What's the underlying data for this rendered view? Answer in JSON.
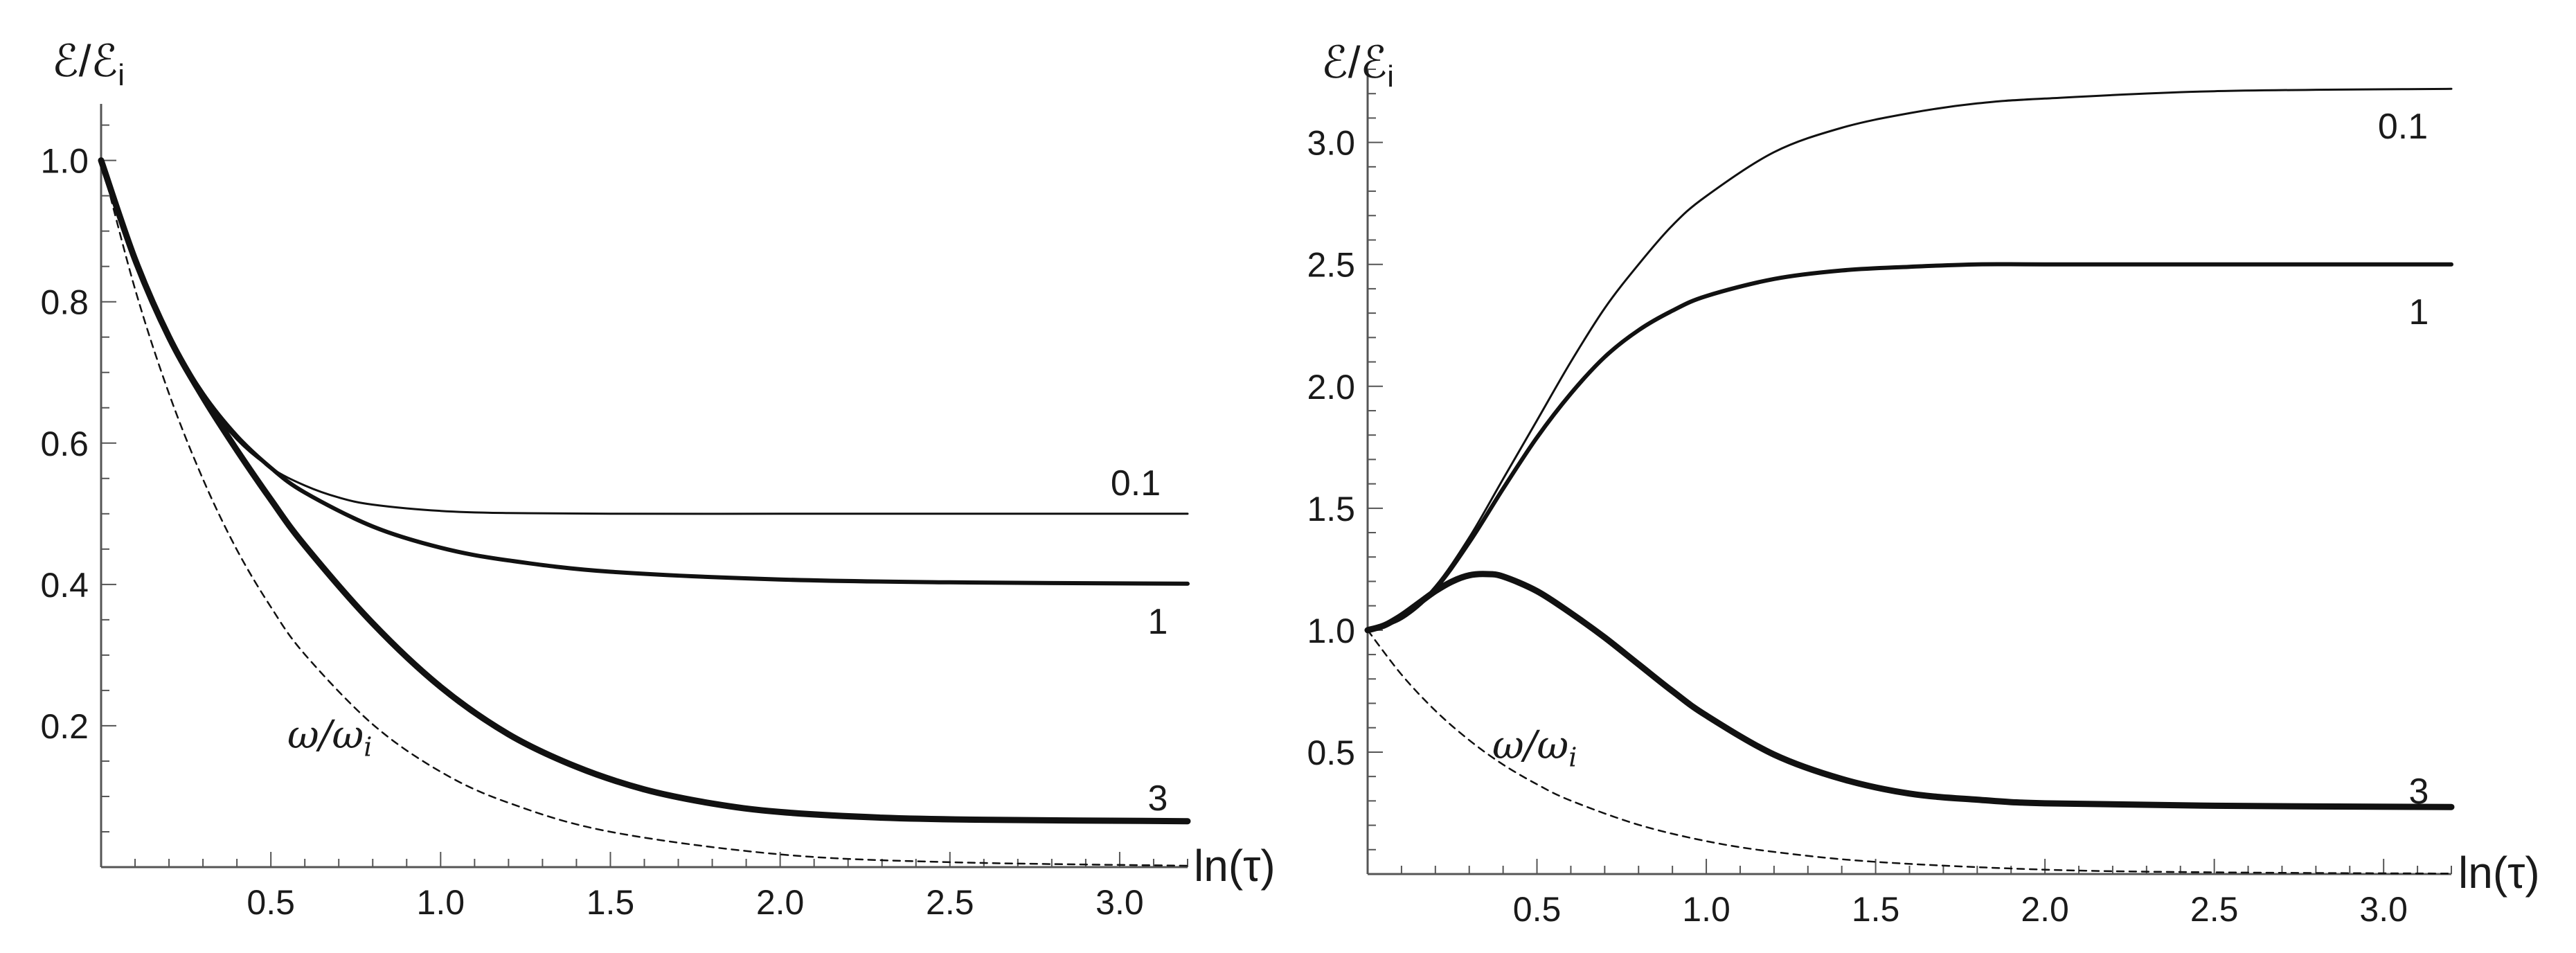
{
  "chart_data": [
    {
      "type": "line",
      "ylabel": "ℰ/ℰi",
      "ylabel_main": "ℰ/ℰ",
      "ylabel_sub": "i",
      "xlabel": "ln(τ)",
      "xlim": [
        0,
        3.2
      ],
      "ylim": [
        0,
        1.08
      ],
      "xticks": [
        "0.5",
        "1.0",
        "1.5",
        "2.0",
        "2.5",
        "3.0"
      ],
      "xtick_values": [
        0.5,
        1.0,
        1.5,
        2.0,
        2.5,
        3.0
      ],
      "yticks": [
        "0.2",
        "0.4",
        "0.6",
        "0.8",
        "1.0"
      ],
      "ytick_values": [
        0.2,
        0.4,
        0.6,
        0.8,
        1.0
      ],
      "series": [
        {
          "name": "0.1",
          "label": "0.1",
          "style": "thin",
          "x": [
            0,
            0.1,
            0.2,
            0.3,
            0.4,
            0.5,
            0.6,
            0.7,
            0.8,
            1.0,
            1.2,
            1.5,
            2.0,
            2.5,
            3.2
          ],
          "y": [
            1.0,
            0.86,
            0.75,
            0.665,
            0.605,
            0.565,
            0.54,
            0.523,
            0.513,
            0.504,
            0.501,
            0.5,
            0.5,
            0.5,
            0.5
          ]
        },
        {
          "name": "1",
          "label": "1",
          "style": "medium",
          "x": [
            0,
            0.1,
            0.2,
            0.3,
            0.4,
            0.5,
            0.6,
            0.8,
            1.0,
            1.2,
            1.5,
            2.0,
            2.5,
            3.2
          ],
          "y": [
            1.0,
            0.86,
            0.75,
            0.67,
            0.61,
            0.565,
            0.53,
            0.482,
            0.452,
            0.434,
            0.418,
            0.407,
            0.403,
            0.401
          ]
        },
        {
          "name": "3",
          "label": "3",
          "style": "thick",
          "x": [
            0,
            0.1,
            0.2,
            0.3,
            0.4,
            0.5,
            0.6,
            0.8,
            1.0,
            1.2,
            1.4,
            1.6,
            1.8,
            2.0,
            2.3,
            2.6,
            3.2
          ],
          "y": [
            1.0,
            0.86,
            0.75,
            0.665,
            0.59,
            0.52,
            0.455,
            0.345,
            0.255,
            0.188,
            0.142,
            0.11,
            0.09,
            0.078,
            0.07,
            0.067,
            0.065
          ]
        },
        {
          "name": "ω/ωi",
          "label_main": "ω/ω",
          "label_sub": "i",
          "style": "dashed",
          "x": [
            0,
            0.1,
            0.2,
            0.3,
            0.4,
            0.5,
            0.6,
            0.8,
            1.0,
            1.2,
            1.5,
            2.0,
            2.5,
            3.2
          ],
          "y": [
            1.0,
            0.818,
            0.67,
            0.549,
            0.449,
            0.368,
            0.301,
            0.202,
            0.135,
            0.091,
            0.05,
            0.018,
            0.007,
            0.002
          ]
        }
      ]
    },
    {
      "type": "line",
      "ylabel": "ℰ/ℰi",
      "ylabel_main": "ℰ/ℰ",
      "ylabel_sub": "i",
      "xlabel": "ln(τ)",
      "xlim": [
        0,
        3.2
      ],
      "ylim": [
        0,
        3.3
      ],
      "xticks": [
        "0.5",
        "1.0",
        "1.5",
        "2.0",
        "2.5",
        "3.0"
      ],
      "xtick_values": [
        0.5,
        1.0,
        1.5,
        2.0,
        2.5,
        3.0
      ],
      "yticks": [
        "0.5",
        "1.0",
        "1.5",
        "2.0",
        "2.5",
        "3.0"
      ],
      "ytick_values": [
        0.5,
        1.0,
        1.5,
        2.0,
        2.5,
        3.0
      ],
      "series": [
        {
          "name": "0.1",
          "label": "0.1",
          "style": "thin",
          "x": [
            0,
            0.1,
            0.2,
            0.3,
            0.4,
            0.5,
            0.6,
            0.7,
            0.8,
            0.9,
            1.0,
            1.2,
            1.4,
            1.6,
            1.8,
            2.0,
            2.5,
            3.2
          ],
          "y": [
            1.0,
            1.05,
            1.18,
            1.38,
            1.62,
            1.86,
            2.1,
            2.32,
            2.5,
            2.66,
            2.78,
            2.96,
            3.06,
            3.12,
            3.16,
            3.18,
            3.21,
            3.22
          ]
        },
        {
          "name": "1",
          "label": "1",
          "style": "medium",
          "x": [
            0,
            0.1,
            0.2,
            0.3,
            0.4,
            0.5,
            0.6,
            0.7,
            0.8,
            0.9,
            1.0,
            1.2,
            1.4,
            1.6,
            1.8,
            2.0,
            2.5,
            3.2
          ],
          "y": [
            1.0,
            1.05,
            1.17,
            1.36,
            1.58,
            1.79,
            1.97,
            2.12,
            2.23,
            2.31,
            2.37,
            2.44,
            2.475,
            2.49,
            2.5,
            2.5,
            2.5,
            2.5
          ]
        },
        {
          "name": "3",
          "label": "3",
          "style": "thick",
          "x": [
            0,
            0.05,
            0.1,
            0.15,
            0.2,
            0.25,
            0.3,
            0.35,
            0.4,
            0.5,
            0.6,
            0.7,
            0.8,
            0.9,
            1.0,
            1.2,
            1.4,
            1.6,
            1.8,
            2.0,
            2.5,
            3.2
          ],
          "y": [
            1.0,
            1.02,
            1.06,
            1.11,
            1.16,
            1.2,
            1.225,
            1.23,
            1.22,
            1.16,
            1.07,
            0.97,
            0.86,
            0.75,
            0.65,
            0.49,
            0.39,
            0.33,
            0.305,
            0.29,
            0.28,
            0.275
          ]
        },
        {
          "name": "ω/ωi",
          "label_main": "ω/ω",
          "label_sub": "i",
          "style": "dashed",
          "x": [
            0,
            0.1,
            0.2,
            0.3,
            0.4,
            0.5,
            0.6,
            0.8,
            1.0,
            1.2,
            1.5,
            2.0,
            2.5,
            3.2
          ],
          "y": [
            1.0,
            0.818,
            0.67,
            0.549,
            0.449,
            0.368,
            0.301,
            0.202,
            0.135,
            0.091,
            0.05,
            0.018,
            0.007,
            0.002
          ]
        }
      ]
    }
  ]
}
